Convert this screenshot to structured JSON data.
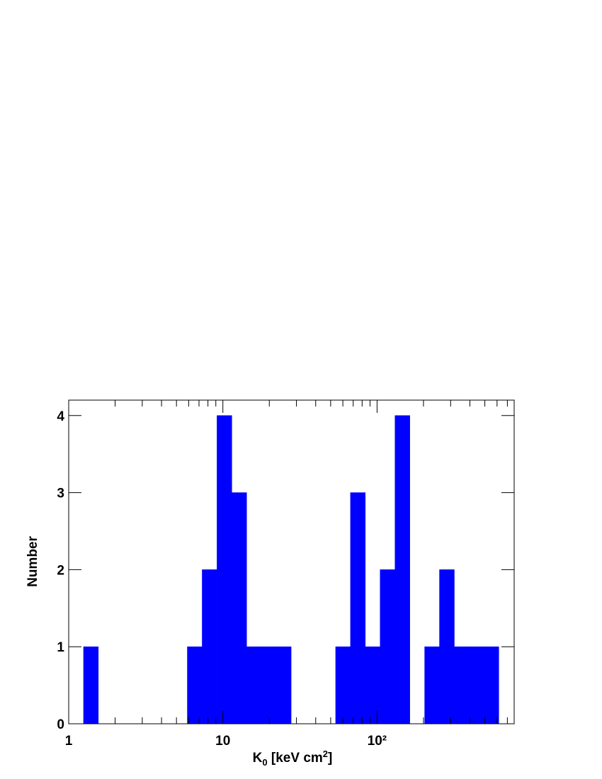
{
  "chart_data": {
    "type": "histogram",
    "xlabel_parts": [
      "K",
      "0",
      " [keV cm",
      "2",
      "]"
    ],
    "ylabel": "Number",
    "bins": [
      1.248,
      1.557,
      1.943,
      2.425,
      3.026,
      3.776,
      4.713,
      5.881,
      7.339,
      9.16,
      11.43,
      14.26,
      17.8,
      22.21,
      27.72,
      34.59,
      43.17,
      53.87,
      67.23,
      83.9,
      104.7,
      130.7,
      163.1,
      203.5,
      254,
      317,
      395.5,
      493.6,
      616
    ],
    "counts": [
      1,
      0,
      0,
      0,
      0,
      0,
      0,
      1,
      2,
      4,
      3,
      1,
      1,
      1,
      0,
      0,
      0,
      1,
      3,
      1,
      2,
      4,
      0,
      1,
      2,
      1,
      1,
      1
    ],
    "color": "#0000ff",
    "xscale": "log",
    "xlim": [
      1,
      775
    ],
    "xticks": [
      1,
      10,
      {
        "value": 100,
        "label": "10²"
      }
    ],
    "xminorticks": [
      2,
      3,
      4,
      5,
      6,
      7,
      8,
      9,
      20,
      30,
      40,
      50,
      60,
      70,
      80,
      90,
      200,
      300,
      400,
      500,
      600,
      700
    ],
    "ylim": [
      0,
      4.2
    ],
    "yticks": [
      0,
      1,
      2,
      3,
      4
    ]
  }
}
